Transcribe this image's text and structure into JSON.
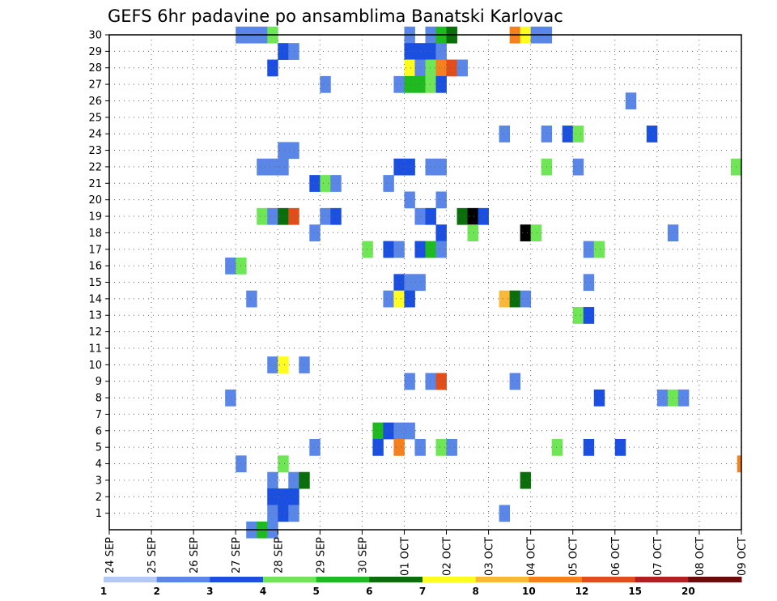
{
  "chart_data": {
    "type": "heatmap",
    "title": "GEFS 6hr padavine po ansamblima Banatski Karlovac",
    "x_tick_labels": [
      "24 SEP",
      "25 SEP",
      "26 SEP",
      "27 SEP",
      "28 SEP",
      "29 SEP",
      "30 SEP",
      "01 OCT",
      "02 OCT",
      "03 OCT",
      "04 OCT",
      "05 OCT",
      "06 OCT",
      "07 OCT",
      "08 OCT",
      "09 OCT"
    ],
    "xlim_days": [
      0,
      15
    ],
    "y_tick_labels": [
      "1",
      "2",
      "3",
      "4",
      "5",
      "6",
      "7",
      "8",
      "9",
      "10",
      "11",
      "12",
      "13",
      "14",
      "15",
      "16",
      "17",
      "18",
      "19",
      "20",
      "21",
      "22",
      "23",
      "24",
      "25",
      "26",
      "27",
      "28",
      "29",
      "30"
    ],
    "ylim": [
      0,
      30
    ],
    "grid": true,
    "levels": [
      1,
      2,
      3,
      4,
      5,
      6,
      7,
      8,
      10,
      12,
      15,
      20
    ],
    "level_labels": [
      "1",
      "2",
      "3",
      "4",
      "5",
      "6",
      "7",
      "8",
      "10",
      "12",
      "15",
      "20"
    ],
    "colors": [
      "#b3c8f5",
      "#5a86e8",
      "#1a4fe0",
      "#6ee656",
      "#1fba1f",
      "#0a6e0a",
      "#fffd1f",
      "#fbb738",
      "#f4811e",
      "#e04e1c",
      "#b02020",
      "#6e0a0a"
    ],
    "cells": [
      [
        3.0,
        30,
        1
      ],
      [
        3.25,
        30,
        1
      ],
      [
        3.5,
        30,
        1
      ],
      [
        3.75,
        30,
        3
      ],
      [
        7.0,
        30,
        1
      ],
      [
        7.5,
        30,
        1
      ],
      [
        7.75,
        30,
        4
      ],
      [
        8.0,
        30,
        5
      ],
      [
        9.5,
        30,
        8
      ],
      [
        9.75,
        30,
        6
      ],
      [
        10.0,
        30,
        1
      ],
      [
        10.25,
        30,
        1
      ],
      [
        4.0,
        29,
        2
      ],
      [
        4.25,
        29,
        1
      ],
      [
        7.0,
        29,
        2
      ],
      [
        7.25,
        29,
        2
      ],
      [
        7.5,
        29,
        2
      ],
      [
        7.75,
        29,
        1
      ],
      [
        3.75,
        28,
        2
      ],
      [
        7.0,
        28,
        6
      ],
      [
        7.25,
        28,
        1
      ],
      [
        7.5,
        28,
        3
      ],
      [
        7.75,
        28,
        8
      ],
      [
        8.0,
        28,
        9
      ],
      [
        8.25,
        28,
        1
      ],
      [
        5.0,
        27,
        1
      ],
      [
        6.75,
        27,
        1
      ],
      [
        7.0,
        27,
        4
      ],
      [
        7.25,
        27,
        4
      ],
      [
        7.5,
        27,
        3
      ],
      [
        7.75,
        27,
        2
      ],
      [
        12.25,
        26,
        1
      ],
      [
        9.25,
        24,
        1
      ],
      [
        10.25,
        24,
        1
      ],
      [
        10.75,
        24,
        2
      ],
      [
        11.0,
        24,
        3
      ],
      [
        12.75,
        24,
        2
      ],
      [
        4.0,
        23,
        1
      ],
      [
        4.25,
        23,
        1
      ],
      [
        3.5,
        22,
        1
      ],
      [
        3.75,
        22,
        1
      ],
      [
        4.0,
        22,
        1
      ],
      [
        6.75,
        22,
        2
      ],
      [
        7.0,
        22,
        2
      ],
      [
        7.5,
        22,
        1
      ],
      [
        7.75,
        22,
        1
      ],
      [
        10.25,
        22,
        3
      ],
      [
        11.0,
        22,
        1
      ],
      [
        14.75,
        22,
        3
      ],
      [
        4.75,
        21,
        2
      ],
      [
        5.0,
        21,
        3
      ],
      [
        5.25,
        21,
        1
      ],
      [
        6.5,
        21,
        1
      ],
      [
        7.0,
        20,
        1
      ],
      [
        7.75,
        20,
        1
      ],
      [
        3.5,
        19,
        3
      ],
      [
        3.75,
        19,
        1
      ],
      [
        4.0,
        19,
        5
      ],
      [
        4.25,
        19,
        9
      ],
      [
        5.0,
        19,
        1
      ],
      [
        5.25,
        19,
        2
      ],
      [
        7.25,
        19,
        1
      ],
      [
        7.5,
        19,
        2
      ],
      [
        8.25,
        19,
        5
      ],
      [
        8.5,
        19,
        12
      ],
      [
        8.75,
        19,
        2
      ],
      [
        4.75,
        18,
        1
      ],
      [
        7.75,
        18,
        2
      ],
      [
        8.5,
        18,
        3
      ],
      [
        9.75,
        18,
        12
      ],
      [
        10.0,
        18,
        3
      ],
      [
        13.25,
        18,
        1
      ],
      [
        6.0,
        17,
        3
      ],
      [
        6.5,
        17,
        2
      ],
      [
        6.75,
        17,
        1
      ],
      [
        7.25,
        17,
        2
      ],
      [
        7.5,
        17,
        4
      ],
      [
        7.75,
        17,
        1
      ],
      [
        11.25,
        17,
        1
      ],
      [
        11.5,
        17,
        3
      ],
      [
        2.75,
        16,
        1
      ],
      [
        3.0,
        16,
        3
      ],
      [
        6.75,
        15,
        2
      ],
      [
        7.0,
        15,
        1
      ],
      [
        7.25,
        15,
        1
      ],
      [
        11.25,
        15,
        1
      ],
      [
        3.25,
        14,
        1
      ],
      [
        6.5,
        14,
        1
      ],
      [
        6.75,
        14,
        6
      ],
      [
        7.0,
        14,
        2
      ],
      [
        9.25,
        14,
        7
      ],
      [
        9.5,
        14,
        5
      ],
      [
        9.75,
        14,
        1
      ],
      [
        11.0,
        13,
        3
      ],
      [
        11.25,
        13,
        2
      ],
      [
        3.75,
        10,
        1
      ],
      [
        4.0,
        10,
        6
      ],
      [
        4.5,
        10,
        1
      ],
      [
        7.0,
        9,
        1
      ],
      [
        7.5,
        9,
        1
      ],
      [
        7.75,
        9,
        9
      ],
      [
        9.5,
        9,
        1
      ],
      [
        2.75,
        8,
        1
      ],
      [
        11.5,
        8,
        2
      ],
      [
        13.0,
        8,
        1
      ],
      [
        13.25,
        8,
        3
      ],
      [
        13.5,
        8,
        1
      ],
      [
        6.25,
        6,
        4
      ],
      [
        6.5,
        6,
        2
      ],
      [
        6.75,
        6,
        1
      ],
      [
        7.0,
        6,
        1
      ],
      [
        4.75,
        5,
        1
      ],
      [
        6.25,
        5,
        2
      ],
      [
        6.75,
        5,
        8
      ],
      [
        7.25,
        5,
        1
      ],
      [
        7.75,
        5,
        3
      ],
      [
        8.0,
        5,
        1
      ],
      [
        10.5,
        5,
        3
      ],
      [
        11.25,
        5,
        2
      ],
      [
        12.0,
        5,
        2
      ],
      [
        3.0,
        4,
        1
      ],
      [
        4.0,
        4,
        3
      ],
      [
        14.9,
        4,
        8
      ],
      [
        3.75,
        3,
        1
      ],
      [
        4.25,
        3,
        1
      ],
      [
        4.5,
        3,
        5
      ],
      [
        9.75,
        3,
        5
      ],
      [
        3.75,
        2,
        2
      ],
      [
        4.0,
        2,
        2
      ],
      [
        4.25,
        2,
        2
      ],
      [
        3.75,
        1,
        1
      ],
      [
        4.0,
        1,
        2
      ],
      [
        4.25,
        1,
        1
      ],
      [
        9.25,
        1,
        1
      ],
      [
        3.25,
        0,
        1
      ],
      [
        3.5,
        0,
        4
      ],
      [
        3.75,
        0,
        1
      ]
    ]
  }
}
